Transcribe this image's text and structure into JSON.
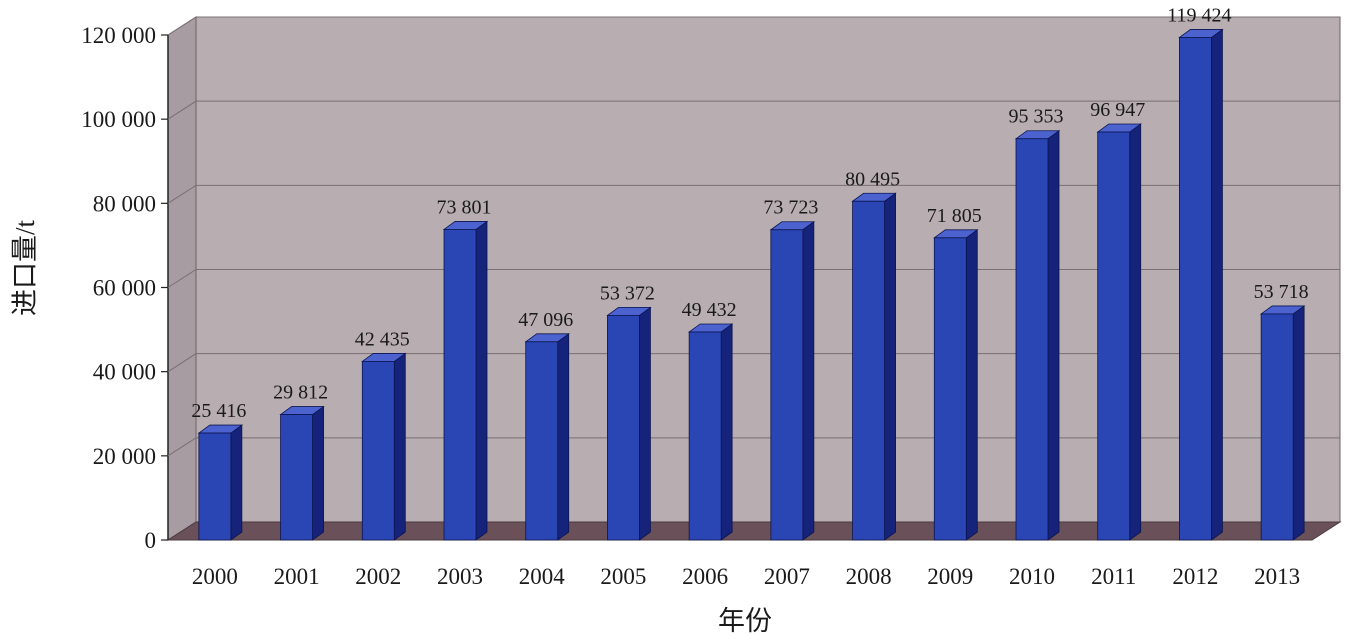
{
  "chart_data": {
    "type": "bar",
    "categories": [
      "2000",
      "2001",
      "2002",
      "2003",
      "2004",
      "2005",
      "2006",
      "2007",
      "2008",
      "2009",
      "2010",
      "2011",
      "2012",
      "2013"
    ],
    "values": [
      25416,
      29812,
      42435,
      73801,
      47096,
      53372,
      49432,
      73723,
      80495,
      71805,
      95353,
      96947,
      119424,
      53718
    ],
    "data_labels": [
      "25 416",
      "29 812",
      "42 435",
      "73 801",
      "47 096",
      "53 372",
      "49 432",
      "73 723",
      "80 495",
      "71 805",
      "95 353",
      "96 947",
      "119 424",
      "53 718"
    ],
    "yticks": [
      0,
      20000,
      40000,
      60000,
      80000,
      100000,
      120000
    ],
    "ytick_labels": [
      "0",
      "20 000",
      "40 000",
      "60 000",
      "80 000",
      "100 000",
      "120 000"
    ],
    "ylim": [
      0,
      120000
    ],
    "ylabel": "进口量/t",
    "xlabel": "年份",
    "title": "",
    "grid": true,
    "style": "3d",
    "colors": {
      "bar_front": "#2a46b4",
      "bar_side": "#15237a",
      "bar_top": "#4c63cf",
      "wall": "#b8aeb2",
      "floor": "#6a5059",
      "gridline": "#7a6f74"
    }
  }
}
